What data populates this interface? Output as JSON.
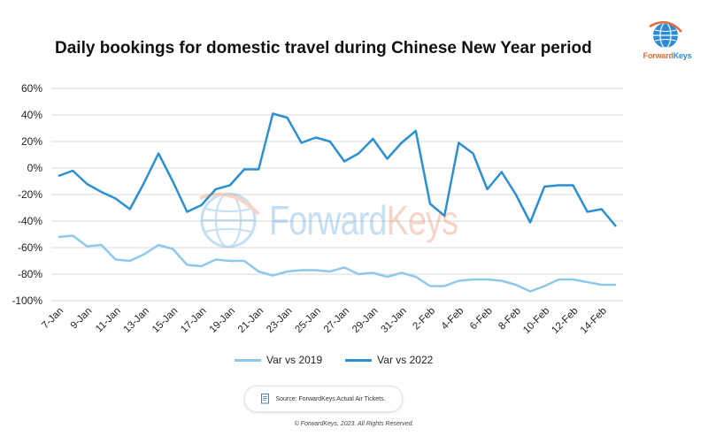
{
  "title": "Daily bookings for domestic travel during Chinese New Year period",
  "logo": {
    "text_a": "Forward",
    "text_b": "Keys"
  },
  "watermark": {
    "text_a": "Forward",
    "text_b": "Keys"
  },
  "legend": {
    "series_2019": "Var vs 2019",
    "series_2022": "Var vs 2022"
  },
  "colors": {
    "series_2019": "#8ec8ec",
    "series_2022": "#2b8fd3",
    "grid": "#d9d9d9",
    "logo_orange": "#e06b3c",
    "logo_blue": "#2c8ad6"
  },
  "source": {
    "text": "Source: ForwardKeys Actual Air Tickets."
  },
  "copyright": "© ForwardKeys, 2023. All Rights Reserved.",
  "chart_data": {
    "type": "line",
    "title": "Daily bookings for domestic travel during Chinese New Year period",
    "xlabel": "",
    "ylabel": "",
    "ylim": [
      -100,
      60
    ],
    "yticks": [
      60,
      40,
      20,
      0,
      -20,
      -40,
      -60,
      -80,
      -100
    ],
    "ytick_labels": [
      "60%",
      "40%",
      "20%",
      "0%",
      "-20%",
      "-40%",
      "-60%",
      "-80%",
      "-100%"
    ],
    "grid": true,
    "legend_position": "bottom",
    "x": [
      "7-Jan",
      "8-Jan",
      "9-Jan",
      "10-Jan",
      "11-Jan",
      "12-Jan",
      "13-Jan",
      "14-Jan",
      "15-Jan",
      "16-Jan",
      "17-Jan",
      "18-Jan",
      "19-Jan",
      "20-Jan",
      "21-Jan",
      "22-Jan",
      "23-Jan",
      "24-Jan",
      "25-Jan",
      "26-Jan",
      "27-Jan",
      "28-Jan",
      "29-Jan",
      "30-Jan",
      "31-Jan",
      "1-Feb",
      "2-Feb",
      "3-Feb",
      "4-Feb",
      "5-Feb",
      "6-Feb",
      "7-Feb",
      "8-Feb",
      "9-Feb",
      "10-Feb",
      "11-Feb",
      "12-Feb",
      "13-Feb",
      "14-Feb",
      "15-Feb"
    ],
    "x_tick_labels": [
      "7-Jan",
      "9-Jan",
      "11-Jan",
      "13-Jan",
      "15-Jan",
      "17-Jan",
      "19-Jan",
      "21-Jan",
      "23-Jan",
      "25-Jan",
      "27-Jan",
      "29-Jan",
      "31-Jan",
      "2-Feb",
      "4-Feb",
      "6-Feb",
      "8-Feb",
      "10-Feb",
      "12-Feb",
      "14-Feb"
    ],
    "series": [
      {
        "name": "Var vs 2019",
        "values": [
          -52,
          -51,
          -59,
          -58,
          -69,
          -70,
          -65,
          -58,
          -61,
          -73,
          -74,
          -69,
          -70,
          -70,
          -78,
          -81,
          -78,
          -77,
          -77,
          -78,
          -75,
          -80,
          -79,
          -82,
          -79,
          -82,
          -89,
          -89,
          -85,
          -84,
          -84,
          -85,
          -88,
          -93,
          -89,
          -84,
          -84,
          -86,
          -88,
          -88
        ]
      },
      {
        "name": "Var vs 2022",
        "values": [
          -6,
          -2,
          -12,
          -18,
          -23,
          -31,
          -11,
          11,
          -10,
          -33,
          -28,
          -16,
          -13,
          -1,
          -1,
          41,
          38,
          19,
          23,
          20,
          5,
          11,
          22,
          7,
          19,
          28,
          -27,
          -36,
          19,
          11,
          -16,
          -3,
          -20,
          -41,
          -14,
          -13,
          -13,
          -33,
          -31,
          -44
        ]
      }
    ]
  }
}
